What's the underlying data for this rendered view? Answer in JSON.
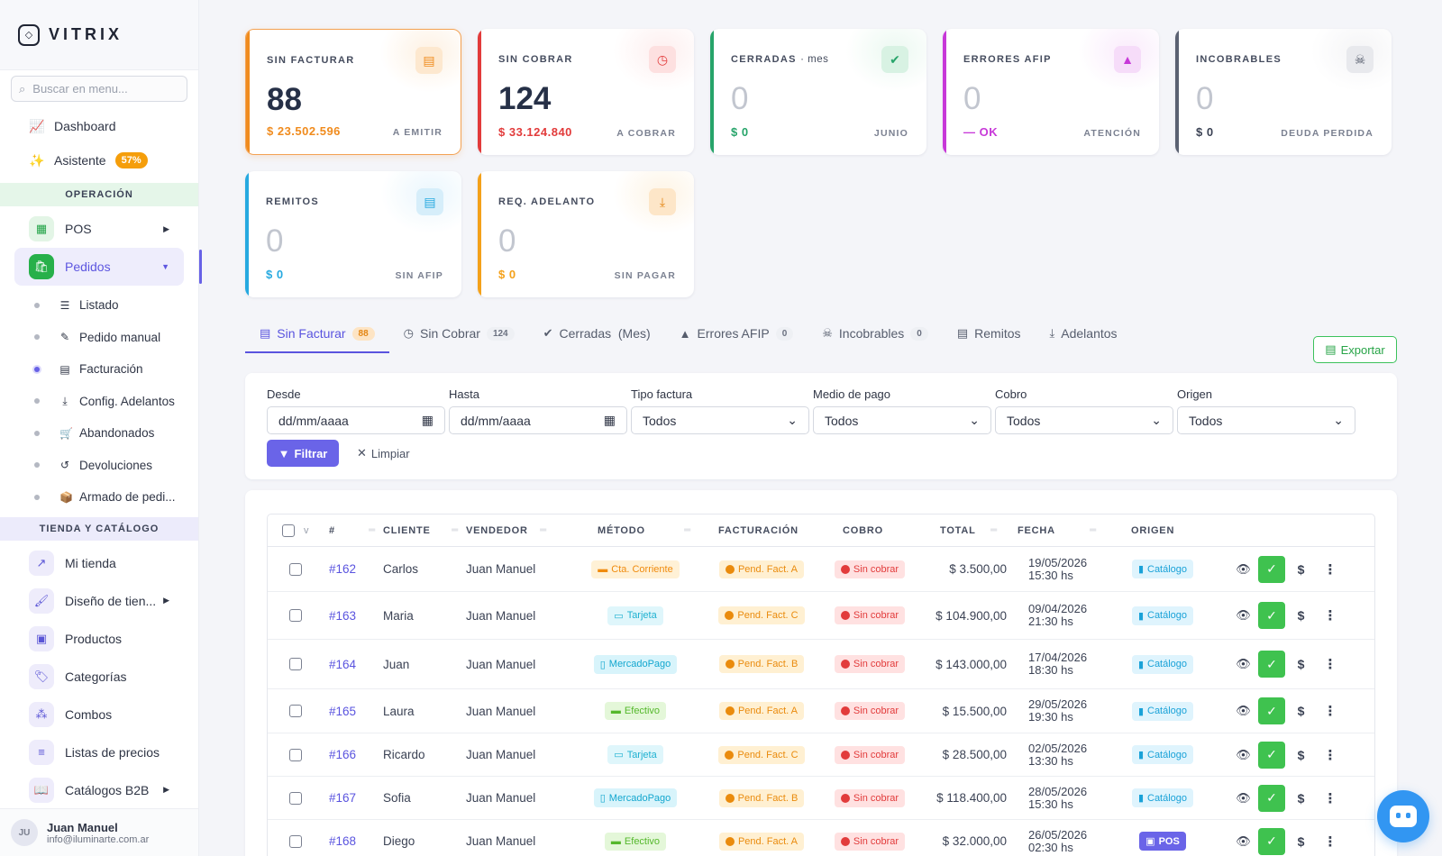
{
  "sidebar": {
    "brand": "VITRIX",
    "search_placeholder": "Buscar en menu...",
    "top_items": [
      {
        "label": "Dashboard",
        "icon": "chart-line-icon"
      },
      {
        "label": "Asistente",
        "icon": "magic-wand-icon",
        "badge": "57%"
      }
    ],
    "sections": [
      {
        "title": "OPERACIÓN"
      },
      {
        "title": "TIENDA Y CATÁLOGO"
      }
    ],
    "operacion": [
      {
        "label": "POS",
        "icon": "cash-register-icon"
      },
      {
        "label": "Pedidos",
        "icon": "shopping-bag-icon"
      }
    ],
    "pedidos_sub": [
      {
        "label": "Listado"
      },
      {
        "label": "Pedido manual"
      },
      {
        "label": "Facturación"
      },
      {
        "label": "Config. Adelantos"
      },
      {
        "label": "Abandonados"
      },
      {
        "label": "Devoluciones"
      },
      {
        "label": "Armado de pedi..."
      }
    ],
    "tienda": [
      {
        "label": "Mi tienda"
      },
      {
        "label": "Diseño de tien..."
      },
      {
        "label": "Productos"
      },
      {
        "label": "Categorías"
      },
      {
        "label": "Combos"
      },
      {
        "label": "Listas de precios"
      },
      {
        "label": "Catálogos B2B"
      }
    ],
    "user": {
      "initials": "JU",
      "name": "Juan Manuel",
      "email": "info@iluminarte.com.ar"
    }
  },
  "cards": [
    {
      "label": "SIN FACTURAR",
      "value": "88",
      "amount": "$ 23.502.596",
      "tag": "A EMITIR",
      "color": "#f08b1d"
    },
    {
      "label": "SIN COBRAR",
      "value": "124",
      "amount": "$ 33.124.840",
      "tag": "A COBRAR",
      "color": "#e23b3b"
    },
    {
      "label": "CERRADAS",
      "sub": "· mes",
      "value": "0",
      "amount": "$ 0",
      "tag": "JUNIO",
      "color": "#27a46a"
    },
    {
      "label": "ERRORES AFIP",
      "value": "0",
      "amount": "— OK",
      "tag": "ATENCIÓN",
      "color": "#c738d8"
    },
    {
      "label": "INCOBRABLES",
      "value": "0",
      "amount": "$ 0",
      "tag": "DEUDA PERDIDA",
      "color": "#5b6272"
    },
    {
      "label": "REMITOS",
      "value": "0",
      "amount": "$ 0",
      "tag": "SIN AFIP",
      "color": "#26a9e0"
    },
    {
      "label": "REQ. ADELANTO",
      "value": "0",
      "amount": "$ 0",
      "tag": "SIN PAGAR",
      "color": "#f4a11a"
    }
  ],
  "tabs": [
    {
      "label": "Sin Facturar",
      "count": "88"
    },
    {
      "label": "Sin Cobrar",
      "count": "124"
    },
    {
      "label": "Cerradas  (Mes)",
      "count": ""
    },
    {
      "label": "Errores AFIP",
      "count": "0"
    },
    {
      "label": "Incobrables",
      "count": "0"
    },
    {
      "label": "Remitos",
      "count": ""
    },
    {
      "label": "Adelantos",
      "count": ""
    }
  ],
  "export_label": "Exportar",
  "filters": {
    "desde_label": "Desde",
    "desde_value": "dd/mm/aaaa",
    "hasta_label": "Hasta",
    "hasta_value": "dd/mm/aaaa",
    "tipo_label": "Tipo factura",
    "tipo_value": "Todos",
    "medio_label": "Medio de pago",
    "medio_value": "Todos",
    "cobro_label": "Cobro",
    "cobro_value": "Todos",
    "origen_label": "Origen",
    "origen_value": "Todos",
    "filter_btn": "Filtrar",
    "clear_btn": "Limpiar"
  },
  "table": {
    "headers": [
      "v",
      "#",
      "CLIENTE",
      "VENDEDOR",
      "MÉTODO",
      "FACTURACIÓN",
      "COBRO",
      "TOTAL",
      "FECHA",
      "ORIGEN"
    ],
    "rows": [
      {
        "id": "#162",
        "cliente": "Carlos",
        "vendedor": "Juan Manuel",
        "metodo": "Cta. Corriente",
        "metodo_kind": "cta",
        "fact": "Pend. Fact. A",
        "cobro": "Sin cobrar",
        "total": "$ 3.500,00",
        "fecha": "19/05/2026",
        "hora": "15:30 hs",
        "origen": "Catálogo"
      },
      {
        "id": "#163",
        "cliente": "Maria",
        "vendedor": "Juan Manuel",
        "metodo": "Tarjeta",
        "metodo_kind": "tar",
        "fact": "Pend. Fact. C",
        "cobro": "Sin cobrar",
        "total": "$ 104.900,00",
        "fecha": "09/04/2026",
        "hora": "21:30 hs",
        "origen": "Catálogo"
      },
      {
        "id": "#164",
        "cliente": "Juan",
        "vendedor": "Juan Manuel",
        "metodo": "MercadoPago",
        "metodo_kind": "mp",
        "fact": "Pend. Fact. B",
        "cobro": "Sin cobrar",
        "total": "$ 143.000,00",
        "fecha": "17/04/2026",
        "hora": "18:30 hs",
        "origen": "Catálogo"
      },
      {
        "id": "#165",
        "cliente": "Laura",
        "vendedor": "Juan Manuel",
        "metodo": "Efectivo",
        "metodo_kind": "ef",
        "fact": "Pend. Fact. A",
        "cobro": "Sin cobrar",
        "total": "$ 15.500,00",
        "fecha": "29/05/2026",
        "hora": "19:30 hs",
        "origen": "Catálogo"
      },
      {
        "id": "#166",
        "cliente": "Ricardo",
        "vendedor": "Juan Manuel",
        "metodo": "Tarjeta",
        "metodo_kind": "tar",
        "fact": "Pend. Fact. C",
        "cobro": "Sin cobrar",
        "total": "$ 28.500,00",
        "fecha": "02/05/2026",
        "hora": "13:30 hs",
        "origen": "Catálogo"
      },
      {
        "id": "#167",
        "cliente": "Sofia",
        "vendedor": "Juan Manuel",
        "metodo": "MercadoPago",
        "metodo_kind": "mp",
        "fact": "Pend. Fact. B",
        "cobro": "Sin cobrar",
        "total": "$ 118.400,00",
        "fecha": "28/05/2026",
        "hora": "15:30 hs",
        "origen": "Catálogo"
      },
      {
        "id": "#168",
        "cliente": "Diego",
        "vendedor": "Juan Manuel",
        "metodo": "Efectivo",
        "metodo_kind": "ef",
        "fact": "Pend. Fact. A",
        "cobro": "Sin cobrar",
        "total": "$ 32.000,00",
        "fecha": "26/05/2026",
        "hora": "02:30 hs",
        "origen": "POS"
      }
    ]
  }
}
